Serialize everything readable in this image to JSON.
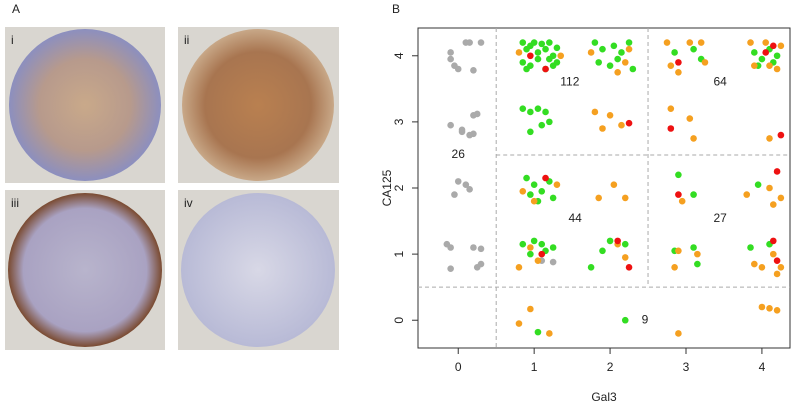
{
  "panel_a": {
    "label": "A",
    "images": [
      "i",
      "ii",
      "iii",
      "iv"
    ]
  },
  "chart_data": {
    "type": "scatter",
    "label": "B",
    "xlabel": "Gal3",
    "ylabel": "CA125",
    "xlim": [
      -0.53,
      4.37
    ],
    "ylim": [
      -0.42,
      4.42
    ],
    "xticks": [
      0,
      1,
      2,
      3,
      4
    ],
    "yticks": [
      0,
      1,
      2,
      3,
      4
    ],
    "dividers": {
      "vertical": [
        0.5,
        2.5
      ],
      "horizontal": [
        0.5,
        2.5
      ]
    },
    "annotations": [
      {
        "text": "112",
        "x": 1.47,
        "y": 3.6
      },
      {
        "text": "64",
        "x": 3.45,
        "y": 3.6
      },
      {
        "text": "26",
        "x": 0.0,
        "y": 2.5
      },
      {
        "text": "44",
        "x": 1.54,
        "y": 1.53
      },
      {
        "text": "27",
        "x": 3.45,
        "y": 1.53
      },
      {
        "text": "9",
        "x": 2.46,
        "y": 0.0
      }
    ],
    "series": [
      {
        "color": "#aaaaaa",
        "x": [
          -0.1,
          0.1,
          0.15,
          0.3,
          -0.05,
          0.0,
          0.2,
          -0.1,
          -0.1,
          0.05,
          0.15,
          0.2,
          0.25,
          0.2,
          0.05,
          0.0,
          0.1,
          -0.05,
          0.15,
          -0.15,
          -0.1,
          0.2,
          0.3,
          0.25,
          -0.1,
          0.3,
          1.1,
          1.25
        ],
        "y": [
          4.05,
          4.2,
          4.2,
          4.2,
          3.85,
          3.8,
          3.78,
          3.95,
          2.95,
          2.88,
          2.8,
          2.82,
          3.12,
          3.1,
          2.85,
          2.1,
          2.05,
          1.9,
          1.98,
          1.15,
          1.1,
          1.1,
          1.08,
          0.8,
          0.78,
          0.85,
          0.9,
          0.88
        ]
      },
      {
        "color": "#33dd22",
        "x": [
          0.85,
          0.9,
          0.95,
          1.0,
          1.05,
          1.1,
          1.15,
          1.2,
          1.25,
          1.3,
          0.85,
          0.95,
          1.05,
          1.15,
          1.25,
          1.3,
          0.9,
          1.2,
          1.8,
          1.9,
          2.05,
          2.15,
          2.25,
          1.85,
          2.0,
          2.1,
          2.3,
          2.85,
          3.1,
          3.2,
          3.9,
          4.0,
          4.1,
          4.2,
          3.95,
          4.15,
          0.85,
          0.95,
          1.05,
          1.15,
          1.1,
          0.95,
          1.2,
          0.9,
          1.0,
          1.1,
          1.2,
          1.05,
          1.25,
          0.95,
          0.85,
          1.0,
          1.1,
          1.25,
          0.95,
          1.15,
          1.75,
          2.0,
          2.2,
          1.9,
          2.85,
          3.1,
          3.15,
          2.9,
          3.1,
          3.95,
          3.85,
          4.1,
          1.05,
          2.2
        ],
        "y": [
          4.2,
          4.1,
          4.15,
          4.2,
          4.05,
          4.18,
          4.1,
          4.2,
          4.0,
          4.12,
          3.9,
          3.85,
          3.95,
          3.8,
          3.85,
          3.9,
          3.8,
          3.95,
          4.2,
          4.1,
          4.15,
          4.05,
          4.2,
          3.9,
          3.85,
          3.95,
          3.8,
          4.05,
          4.1,
          3.95,
          4.05,
          3.95,
          4.1,
          4.0,
          3.85,
          3.9,
          3.2,
          3.15,
          3.2,
          3.15,
          2.95,
          2.85,
          3.0,
          2.15,
          2.05,
          1.95,
          2.1,
          1.8,
          1.85,
          1.9,
          1.15,
          1.2,
          1.15,
          1.1,
          1.0,
          1.05,
          0.8,
          1.2,
          1.15,
          1.05,
          1.05,
          1.1,
          0.85,
          2.2,
          1.9,
          2.05,
          1.1,
          1.15,
          -0.18,
          0.0
        ]
      },
      {
        "color": "#f5a020",
        "x": [
          0.8,
          1.35,
          1.75,
          2.2,
          2.1,
          2.25,
          2.75,
          2.8,
          3.05,
          3.2,
          3.25,
          2.9,
          3.85,
          4.05,
          3.9,
          4.2,
          4.25,
          4.1,
          1.8,
          2.0,
          2.15,
          1.9,
          2.8,
          3.05,
          3.1,
          4.1,
          0.85,
          1.3,
          1.0,
          1.85,
          2.05,
          2.2,
          2.95,
          3.8,
          4.15,
          4.1,
          4.25,
          0.8,
          1.05,
          0.95,
          2.1,
          2.2,
          2.9,
          3.15,
          2.85,
          3.9,
          4.0,
          4.15,
          4.2,
          4.25,
          0.8,
          0.95,
          1.2,
          2.9,
          4.0,
          4.1,
          4.2
        ],
        "y": [
          4.05,
          4.0,
          4.05,
          3.9,
          3.75,
          4.1,
          4.2,
          3.85,
          4.2,
          4.2,
          3.9,
          3.75,
          4.2,
          4.2,
          3.85,
          3.8,
          4.15,
          3.85,
          3.15,
          3.1,
          2.95,
          2.9,
          3.2,
          3.05,
          2.75,
          2.75,
          1.95,
          2.05,
          1.8,
          1.85,
          2.05,
          1.85,
          1.8,
          1.9,
          1.75,
          2.0,
          1.85,
          0.8,
          0.9,
          1.1,
          1.15,
          0.95,
          1.05,
          1.0,
          0.8,
          0.85,
          0.8,
          1.0,
          0.7,
          0.8,
          -0.05,
          0.17,
          -0.2,
          -0.2,
          0.2,
          0.18,
          0.15
        ]
      },
      {
        "color": "#ee1111",
        "x": [
          0.95,
          1.15,
          2.9,
          4.05,
          4.15,
          2.25,
          2.8,
          4.25,
          1.15,
          2.1,
          2.25,
          2.9,
          4.2,
          4.15,
          4.2,
          1.1
        ],
        "y": [
          4.0,
          3.8,
          3.9,
          4.05,
          4.15,
          2.98,
          2.9,
          2.8,
          2.15,
          1.2,
          0.8,
          1.9,
          2.25,
          1.2,
          0.9,
          1.0
        ]
      }
    ]
  }
}
